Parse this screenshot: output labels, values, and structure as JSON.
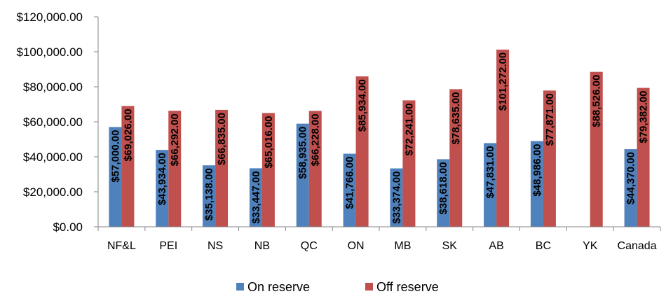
{
  "chart_data": {
    "type": "bar",
    "title": "",
    "xlabel": "",
    "ylabel": "",
    "ylim": [
      0,
      120000
    ],
    "yticks": [
      0,
      20000,
      40000,
      60000,
      80000,
      100000,
      120000
    ],
    "ytick_labels": [
      "$0.00",
      "$20,000.00",
      "$40,000.00",
      "$60,000.00",
      "$80,000.00",
      "$100,000.00",
      "$120,000.00"
    ],
    "categories": [
      "NF&L",
      "PEI",
      "NS",
      "NB",
      "QC",
      "ON",
      "MB",
      "SK",
      "AB",
      "BC",
      "YK",
      "Canada"
    ],
    "series": [
      {
        "name": "On reserve",
        "color": "#4F81BD",
        "values": [
          57000,
          43934,
          35138,
          33447,
          58935,
          41766,
          33374,
          38618,
          47831,
          48986,
          null,
          44370
        ],
        "labels": [
          "$57,000.00",
          "$43,934.00",
          "$35,138.00",
          "$33,447.00",
          "$58,935.00",
          "$41,766.00",
          "$33,374.00",
          "$38,618.00",
          "$47,831.00",
          "$48,986.00",
          "",
          "$44,370.00"
        ]
      },
      {
        "name": "Off reserve",
        "color": "#C0504D",
        "values": [
          69026,
          66292,
          66835,
          65016,
          66228,
          85934,
          72241,
          78635,
          101272,
          77871,
          88526,
          79382
        ],
        "labels": [
          "$69,026.00",
          "$66,292.00",
          "$66,835.00",
          "$65,016.00",
          "$66,228.00",
          "$85,934.00",
          "$72,241.00",
          "$78,635.00",
          "$101,272.00",
          "$77,871.00",
          "$88,526.00",
          "$79,382.00"
        ]
      }
    ],
    "grid": false,
    "legend_position": "bottom"
  }
}
